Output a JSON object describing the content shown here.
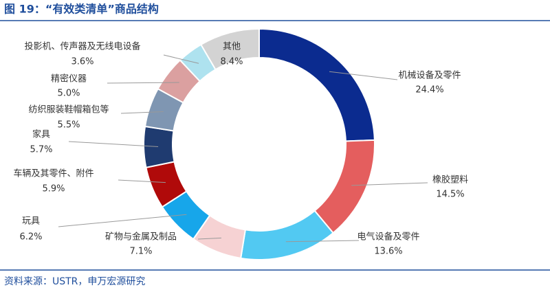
{
  "chart_data": {
    "type": "donut",
    "title": "图 19：“有效类清单”商品结构",
    "source": "资料来源：USTR，申万宏源研究",
    "categories": [
      "机械设备及零件",
      "橡胶塑料",
      "电气设备及零件",
      "矿物与金属及制品",
      "玩具",
      "车辆及其零件、附件",
      "家具",
      "纺织服装鞋帽箱包等",
      "精密仪器",
      "投影机、传声器及无线电设备",
      "其他"
    ],
    "values": [
      24.4,
      14.5,
      13.6,
      7.1,
      6.2,
      5.9,
      5.7,
      5.5,
      5.0,
      3.6,
      8.4
    ],
    "value_labels": [
      "24.4%",
      "14.5%",
      "13.6%",
      "7.1%",
      "6.2%",
      "5.9%",
      "5.7%",
      "5.5%",
      "5.0%",
      "3.6%",
      "8.4%"
    ],
    "colors": [
      "#0b2b8f",
      "#e45e5e",
      "#52c9f2",
      "#f6d2d3",
      "#17a6ea",
      "#b00a0a",
      "#1f3b70",
      "#7f96b2",
      "#dba0a0",
      "#aee2ef",
      "#d3d3d3"
    ]
  }
}
